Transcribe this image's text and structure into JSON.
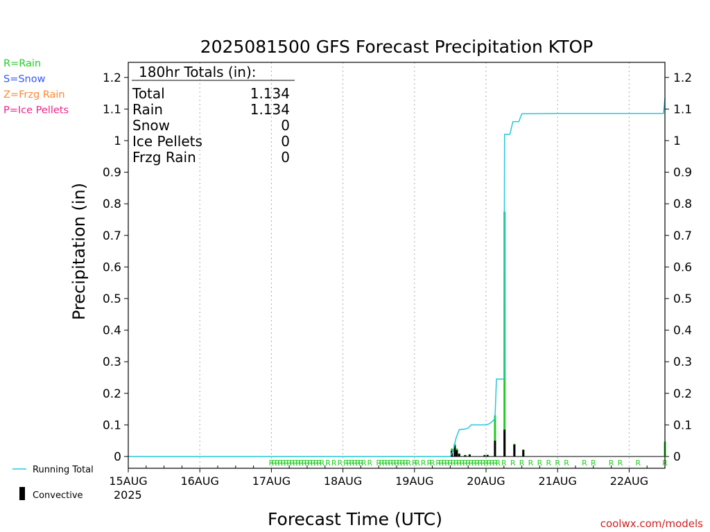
{
  "chart_data": {
    "type": "bar",
    "title": "2025081500 GFS Forecast Precipitation KTOP",
    "xlabel": "Forecast Time (UTC)",
    "ylabel": "Precipitation (in)",
    "year_label": "2025",
    "ylim": [
      0,
      1.25
    ],
    "xlim_hours": [
      0,
      180
    ],
    "yticks": [
      0,
      0.1,
      0.2,
      0.3,
      0.4,
      0.5,
      0.6,
      0.7,
      0.8,
      0.9,
      1,
      1.1,
      1.2
    ],
    "ytick_labels": [
      "0",
      "0.1",
      "0.2",
      "0.3",
      "0.4",
      "0.5",
      "0.6",
      "0.7",
      "0.8",
      "0.9",
      "1",
      "1.1",
      "1.2"
    ],
    "xticks": [
      {
        "label": "15AUG",
        "hour": 0
      },
      {
        "label": "16AUG",
        "hour": 24
      },
      {
        "label": "17AUG",
        "hour": 48
      },
      {
        "label": "18AUG",
        "hour": 72
      },
      {
        "label": "19AUG",
        "hour": 96
      },
      {
        "label": "20AUG",
        "hour": 120
      },
      {
        "label": "21AUG",
        "hour": 144
      },
      {
        "label": "22AUG",
        "hour": 168
      }
    ],
    "legend": [
      {
        "text": "R=Rain",
        "color": "#22cc22"
      },
      {
        "text": "S=Snow",
        "color": "#3355ff"
      },
      {
        "text": "Z=Frzg Rain",
        "color": "#ff8833"
      },
      {
        "text": "P=Ice Pellets",
        "color": "#ee2288"
      }
    ],
    "bottom_legend": {
      "line": "Running Total",
      "bar": "Convective"
    },
    "totals": {
      "header": "180hr Totals (in):",
      "rows": [
        {
          "label": "Total",
          "value": "1.134"
        },
        {
          "label": "Rain",
          "value": "1.134"
        },
        {
          "label": "Snow",
          "value": "0"
        },
        {
          "label": "Ice Pellets",
          "value": "0"
        },
        {
          "label": "Frzg Rain",
          "value": "0"
        }
      ]
    },
    "running_total": [
      [
        0,
        0
      ],
      [
        108,
        0
      ],
      [
        109,
        0.02
      ],
      [
        110,
        0.06
      ],
      [
        111,
        0.085
      ],
      [
        113,
        0.087
      ],
      [
        114,
        0.09
      ],
      [
        115,
        0.1
      ],
      [
        117,
        0.1
      ],
      [
        119,
        0.1
      ],
      [
        120,
        0.1
      ],
      [
        121,
        0.103
      ],
      [
        122,
        0.11
      ],
      [
        123,
        0.12
      ],
      [
        123.5,
        0.245
      ],
      [
        126,
        0.245
      ],
      [
        126.2,
        1.02
      ],
      [
        128,
        1.02
      ],
      [
        129,
        1.06
      ],
      [
        131,
        1.06
      ],
      [
        132,
        1.085
      ],
      [
        144,
        1.086
      ],
      [
        168,
        1.086
      ],
      [
        179.5,
        1.086
      ],
      [
        180,
        1.134
      ]
    ],
    "bars": [
      {
        "hour": 108.5,
        "total": 0.025,
        "convective": 0.018
      },
      {
        "hour": 109.5,
        "total": 0.04,
        "convective": 0.035
      },
      {
        "hour": 110.2,
        "total": 0.025,
        "convective": 0.02
      },
      {
        "hour": 111,
        "total": 0.01,
        "convective": 0.008
      },
      {
        "hour": 113,
        "total": 0.005,
        "convective": 0.004
      },
      {
        "hour": 114.5,
        "total": 0.007,
        "convective": 0.006
      },
      {
        "hour": 119.5,
        "total": 0.005,
        "convective": 0.004
      },
      {
        "hour": 120.5,
        "total": 0.005,
        "convective": 0.005
      },
      {
        "hour": 123,
        "total": 0.13,
        "convective": 0.05
      },
      {
        "hour": 126.2,
        "total": 0.775,
        "convective": 0.085
      },
      {
        "hour": 129.5,
        "total": 0.04,
        "convective": 0.038
      },
      {
        "hour": 132.5,
        "total": 0.022,
        "convective": 0.021
      },
      {
        "hour": 180,
        "total": 0.047,
        "convective": 0.0
      }
    ],
    "ptype_markers": {
      "symbol": "R",
      "hours": [
        48,
        49,
        50,
        51,
        52,
        53,
        54,
        55,
        56,
        57,
        58,
        59,
        60,
        61,
        62,
        63,
        64,
        65,
        67,
        69,
        71,
        73,
        74,
        75,
        76,
        77,
        78,
        79,
        81,
        84,
        85,
        86,
        87,
        88,
        89,
        90,
        91,
        92,
        93,
        94,
        96,
        97,
        99,
        101,
        102,
        104,
        105,
        106,
        107,
        108,
        109,
        110,
        111,
        112,
        113,
        114,
        115,
        116,
        117,
        118,
        119,
        120,
        121,
        122,
        123,
        124,
        126,
        129,
        132,
        135,
        138,
        141,
        144,
        147,
        153,
        156,
        162,
        165,
        171,
        180
      ]
    },
    "credit": "coolwx.com/models"
  }
}
